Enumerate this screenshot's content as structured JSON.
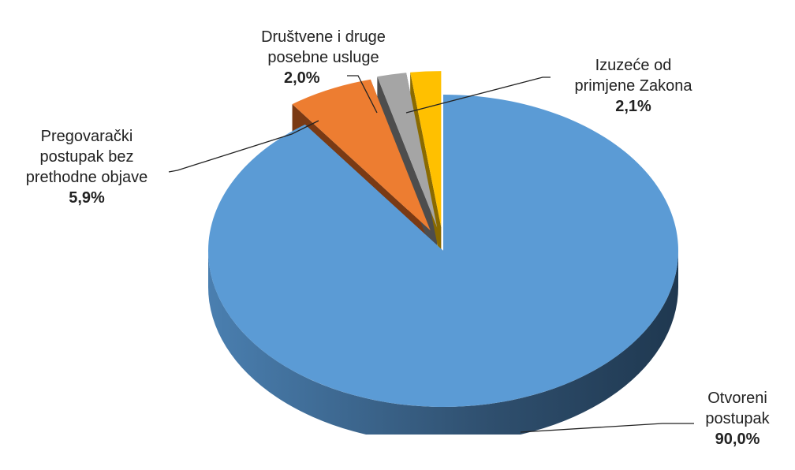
{
  "chart_data": {
    "type": "pie",
    "style": "3d-exploded",
    "slices": [
      {
        "label": "Otvoreni\npostupak",
        "value": 90.0,
        "display": "90,0%",
        "color": "#5B9BD5"
      },
      {
        "label": "Pregovarački\npostupak bez\nprethodne objave",
        "value": 5.9,
        "display": "5,9%",
        "color": "#ED7D31"
      },
      {
        "label": "Društvene i druge\nposebne usluge",
        "value": 2.0,
        "display": "2,0%",
        "color": "#A5A5A5"
      },
      {
        "label": "Izuzeće od\nprimjene Zakona",
        "value": 2.1,
        "display": "2,1%",
        "color": "#FFC000"
      }
    ]
  }
}
